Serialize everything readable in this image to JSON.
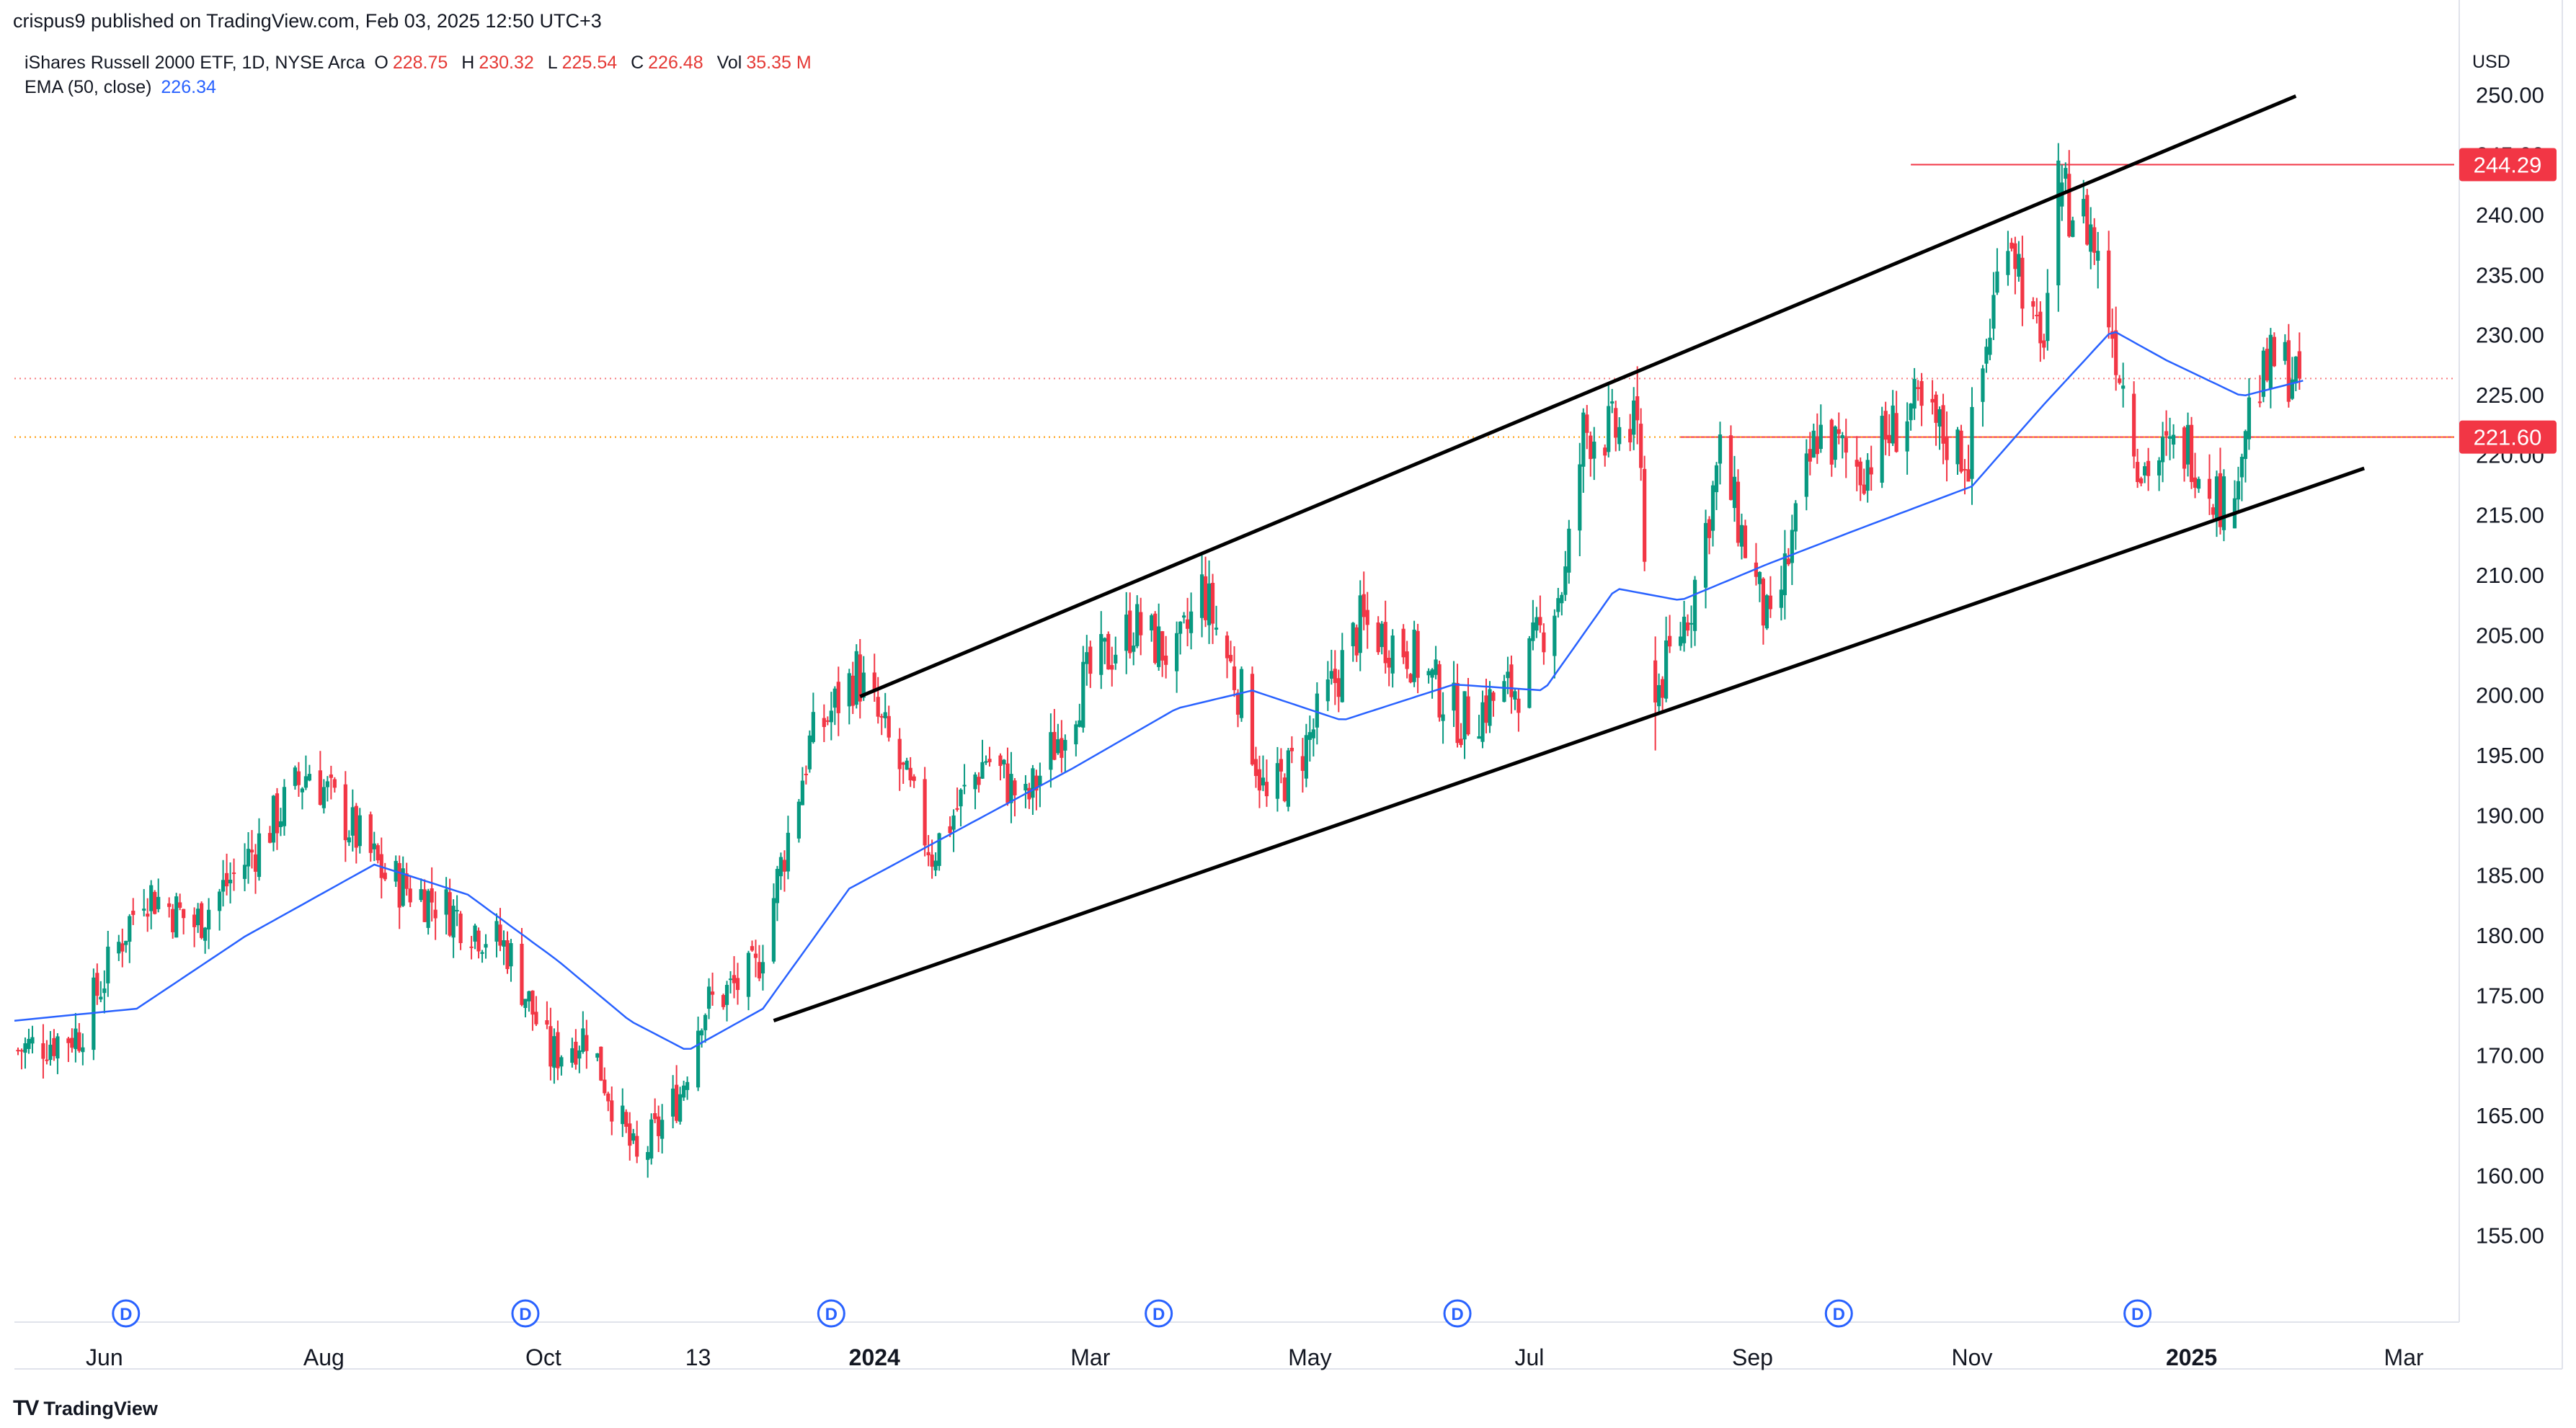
{
  "header": {
    "published_by": "crispus9 published on TradingView.com, Feb 03, 2025 12:50 UTC+3"
  },
  "legend": {
    "symbol": "iShares Russell 2000 ETF, 1D, NYSE Arca",
    "open_label": "O",
    "open": "228.75",
    "high_label": "H",
    "high": "230.32",
    "low_label": "L",
    "low": "225.54",
    "close_label": "C",
    "close": "226.48",
    "vol_label": "Vol",
    "vol": "35.35 M",
    "ema_label": "EMA (50, close)",
    "ema_value": "226.34"
  },
  "footer": {
    "brand": "TradingView",
    "logo_glyph": "TV"
  },
  "colors": {
    "up": "#089981",
    "down": "#f23645",
    "ema": "#2962ff",
    "price_line": "#f23645",
    "channel": "#000000",
    "axis_text": "#131722",
    "marker": "#2962ff"
  },
  "chart_data": {
    "type": "candlestick",
    "currency": "USD",
    "ylim": [
      150,
      252
    ],
    "y_ticks": [
      "155.00",
      "160.00",
      "165.00",
      "170.00",
      "175.00",
      "180.00",
      "185.00",
      "190.00",
      "195.00",
      "200.00",
      "205.00",
      "210.00",
      "215.00",
      "220.00",
      "225.00",
      "230.00",
      "235.00",
      "240.00",
      "245.00",
      "250.00"
    ],
    "x_labels": [
      {
        "t": "2023-06-01",
        "label": "Jun",
        "bold": false
      },
      {
        "t": "2023-08-01",
        "label": "Aug",
        "bold": false
      },
      {
        "t": "2023-10-01",
        "label": "Oct",
        "bold": false
      },
      {
        "t": "2023-11-13",
        "label": "13",
        "bold": false
      },
      {
        "t": "2024-01-01",
        "label": "2024",
        "bold": true
      },
      {
        "t": "2024-03-01",
        "label": "Mar",
        "bold": false
      },
      {
        "t": "2024-05-01",
        "label": "May",
        "bold": false
      },
      {
        "t": "2024-07-01",
        "label": "Jul",
        "bold": false
      },
      {
        "t": "2024-09-01",
        "label": "Sep",
        "bold": false
      },
      {
        "t": "2024-11-01",
        "label": "Nov",
        "bold": false
      },
      {
        "t": "2025-01-01",
        "label": "2025",
        "bold": true
      },
      {
        "t": "2025-03-01",
        "label": "Mar",
        "bold": false
      }
    ],
    "time_range": [
      "2023-05-07",
      "2025-03-15"
    ],
    "dividend_markers": {
      "label": "D",
      "dates": [
        "2023-06-07",
        "2023-09-26",
        "2023-12-20",
        "2024-03-20",
        "2024-06-11",
        "2024-09-25",
        "2024-12-17"
      ]
    },
    "price_labels": [
      {
        "value": 244.29,
        "text": "244.29"
      },
      {
        "value": 221.6,
        "text": "221.60"
      }
    ],
    "horizontal_lines": [
      {
        "value": 244.29,
        "from": "2024-10-15",
        "to": "2025-03-15",
        "style": "solid"
      },
      {
        "value": 221.6,
        "from": "2024-08-12",
        "to": "2025-03-15",
        "style": "solid"
      },
      {
        "value": 226.48,
        "from": "2023-05-07",
        "to": "2025-03-15",
        "style": "dotted"
      },
      {
        "value": 221.6,
        "from": "2023-05-07",
        "to": "2025-03-15",
        "style": "dotted-orange"
      }
    ],
    "channel_lines": [
      {
        "from": {
          "t": "2023-12-04",
          "v": 173.0
        },
        "to": {
          "t": "2025-02-18",
          "v": 219.0
        }
      },
      {
        "from": {
          "t": "2023-12-28",
          "v": 200.0
        },
        "to": {
          "t": "2025-01-30",
          "v": 250.0
        }
      }
    ],
    "close_path": [
      [
        "2023-05-07",
        170.5
      ],
      [
        "2023-05-25",
        172.0
      ],
      [
        "2023-06-12",
        184.0
      ],
      [
        "2023-06-26",
        181.0
      ],
      [
        "2023-07-12",
        187.0
      ],
      [
        "2023-07-28",
        194.0
      ],
      [
        "2023-08-18",
        185.0
      ],
      [
        "2023-09-01",
        183.0
      ],
      [
        "2023-09-21",
        179.0
      ],
      [
        "2023-10-03",
        170.0
      ],
      [
        "2023-10-13",
        172.0
      ],
      [
        "2023-10-27",
        161.0
      ],
      [
        "2023-11-08",
        167.0
      ],
      [
        "2023-11-14",
        174.0
      ],
      [
        "2023-11-29",
        177.0
      ],
      [
        "2023-12-14",
        196.0
      ],
      [
        "2023-12-27",
        202.0
      ],
      [
        "2024-01-08",
        194.0
      ],
      [
        "2024-01-17",
        187.0
      ],
      [
        "2024-02-01",
        195.0
      ],
      [
        "2024-02-12",
        191.0
      ],
      [
        "2024-02-28",
        201.0
      ],
      [
        "2024-03-13",
        206.0
      ],
      [
        "2024-03-25",
        203.0
      ],
      [
        "2024-04-01",
        209.0
      ],
      [
        "2024-04-12",
        200.0
      ],
      [
        "2024-04-19",
        191.0
      ],
      [
        "2024-04-30",
        196.0
      ],
      [
        "2024-05-15",
        206.0
      ],
      [
        "2024-05-28",
        204.0
      ],
      [
        "2024-06-12",
        198.0
      ],
      [
        "2024-06-28",
        201.0
      ],
      [
        "2024-07-11",
        210.0
      ],
      [
        "2024-07-16",
        222.0
      ],
      [
        "2024-07-31",
        222.0
      ],
      [
        "2024-08-05",
        200.0
      ],
      [
        "2024-08-15",
        208.0
      ],
      [
        "2024-08-23",
        220.0
      ],
      [
        "2024-09-06",
        205.0
      ],
      [
        "2024-09-19",
        222.0
      ],
      [
        "2024-10-01",
        219.0
      ],
      [
        "2024-10-15",
        224.0
      ],
      [
        "2024-10-31",
        220.0
      ],
      [
        "2024-11-11",
        240.0
      ],
      [
        "2024-11-20",
        228.0
      ],
      [
        "2024-11-25",
        242.0
      ],
      [
        "2024-12-04",
        239.0
      ],
      [
        "2024-12-18",
        219.0
      ],
      [
        "2024-12-31",
        221.0
      ],
      [
        "2025-01-10",
        216.0
      ],
      [
        "2025-01-17",
        224.0
      ],
      [
        "2025-01-24",
        228.0
      ],
      [
        "2025-02-01",
        226.5
      ]
    ],
    "ema_path": [
      [
        "2023-05-07",
        173.0
      ],
      [
        "2023-06-10",
        174.0
      ],
      [
        "2023-07-10",
        180.0
      ],
      [
        "2023-08-15",
        186.0
      ],
      [
        "2023-09-10",
        183.5
      ],
      [
        "2023-10-05",
        178.0
      ],
      [
        "2023-10-25",
        173.0
      ],
      [
        "2023-11-10",
        170.5
      ],
      [
        "2023-12-01",
        174.0
      ],
      [
        "2023-12-25",
        184.0
      ],
      [
        "2024-01-25",
        189.0
      ],
      [
        "2024-02-25",
        194.0
      ],
      [
        "2024-03-25",
        199.0
      ],
      [
        "2024-04-15",
        200.5
      ],
      [
        "2024-05-10",
        198.0
      ],
      [
        "2024-06-10",
        201.0
      ],
      [
        "2024-07-05",
        200.5
      ],
      [
        "2024-07-25",
        209.0
      ],
      [
        "2024-08-12",
        208.0
      ],
      [
        "2024-09-05",
        211.0
      ],
      [
        "2024-10-01",
        214.0
      ],
      [
        "2024-11-01",
        217.5
      ],
      [
        "2024-11-20",
        224.0
      ],
      [
        "2024-12-10",
        230.5
      ],
      [
        "2024-12-25",
        228.0
      ],
      [
        "2025-01-15",
        225.0
      ],
      [
        "2025-02-01",
        226.3
      ]
    ],
    "special_candles": [
      {
        "t": "2024-11-26",
        "o": 240.8,
        "h": 244.29,
        "l": 239.6,
        "c": 242.8
      },
      {
        "t": "2024-07-31",
        "o": 225.0,
        "h": 227.5,
        "l": 221.0,
        "c": 223.0
      },
      {
        "t": "2024-08-05",
        "o": 203.0,
        "h": 205.0,
        "l": 195.5,
        "c": 199.5
      },
      {
        "t": "2025-01-13",
        "o": 214.0,
        "h": 218.0,
        "l": 214.0,
        "c": 216.5
      },
      {
        "t": "2025-01-31",
        "o": 228.75,
        "h": 230.32,
        "l": 225.54,
        "c": 226.48
      }
    ]
  }
}
